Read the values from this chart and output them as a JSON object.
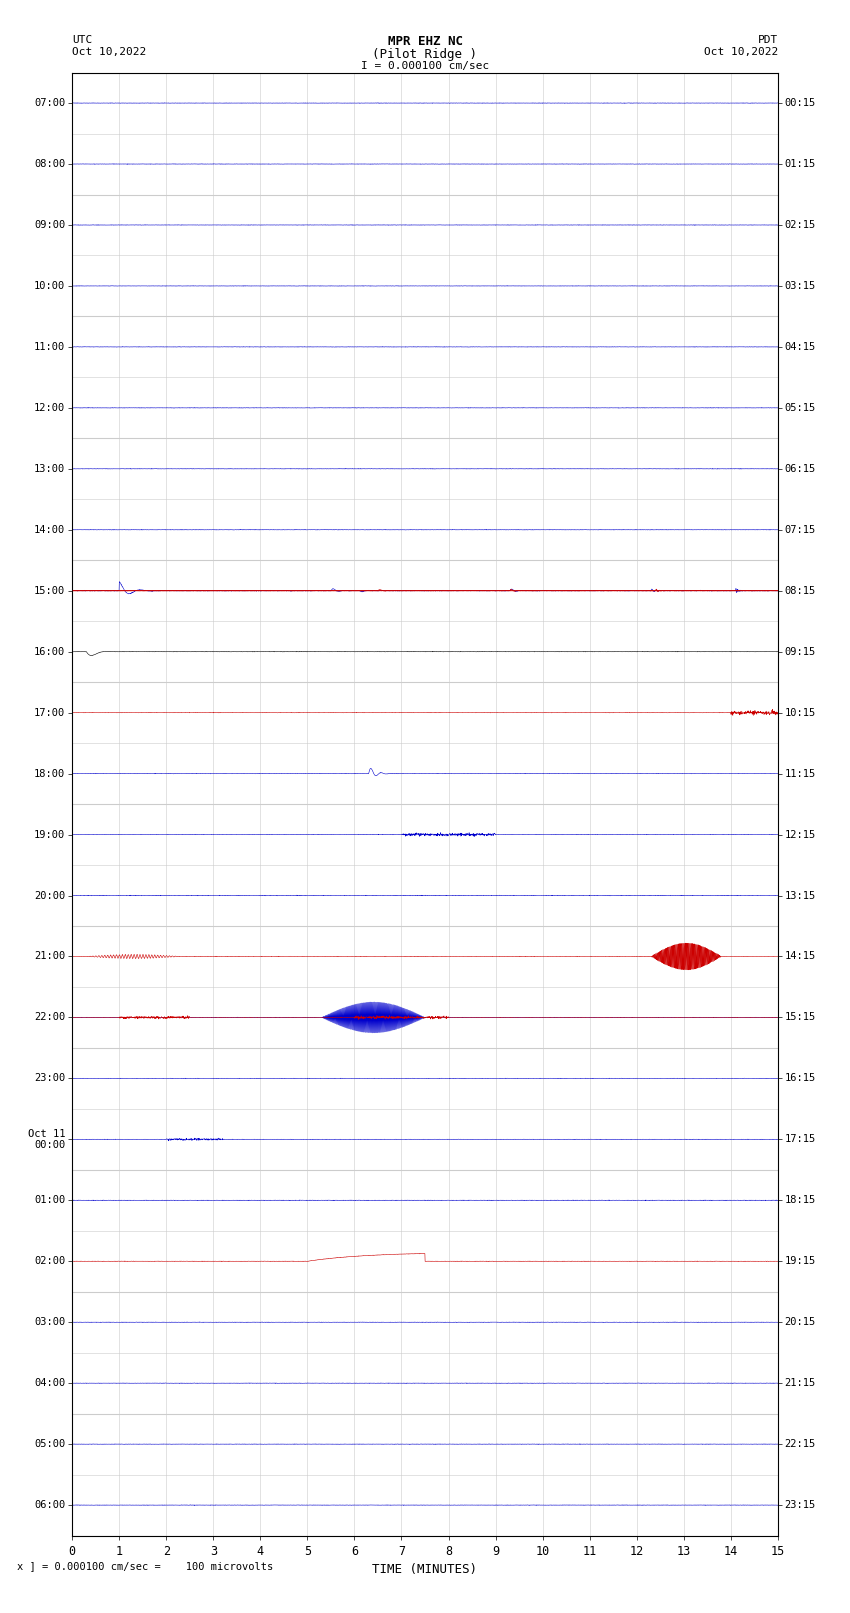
{
  "title_line1": "MPR EHZ NC",
  "title_line2": "(Pilot Ridge )",
  "scale_label": "I = 0.000100 cm/sec",
  "left_label_top": "UTC",
  "left_label_date": "Oct 10,2022",
  "right_label_top": "PDT",
  "right_label_date": "Oct 10,2022",
  "bottom_label": "TIME (MINUTES)",
  "scale_note": "x ] = 0.000100 cm/sec =    100 microvolts",
  "utc_times": [
    "07:00",
    "08:00",
    "09:00",
    "10:00",
    "11:00",
    "12:00",
    "13:00",
    "14:00",
    "15:00",
    "16:00",
    "17:00",
    "18:00",
    "19:00",
    "20:00",
    "21:00",
    "22:00",
    "23:00",
    "Oct 11\n00:00",
    "01:00",
    "02:00",
    "03:00",
    "04:00",
    "05:00",
    "06:00"
  ],
  "pdt_times": [
    "00:15",
    "01:15",
    "02:15",
    "03:15",
    "04:15",
    "05:15",
    "06:15",
    "07:15",
    "08:15",
    "09:15",
    "10:15",
    "11:15",
    "12:15",
    "13:15",
    "14:15",
    "15:15",
    "16:15",
    "17:15",
    "18:15",
    "19:15",
    "20:15",
    "21:15",
    "22:15",
    "23:15"
  ],
  "n_rows": 24,
  "n_minutes": 15,
  "bg_color": "#ffffff",
  "grid_color_minor": "#cccccc",
  "grid_color_major": "#888888",
  "trace_color_blue": "#0000cc",
  "trace_color_red": "#cc0000",
  "trace_color_black": "#000000"
}
